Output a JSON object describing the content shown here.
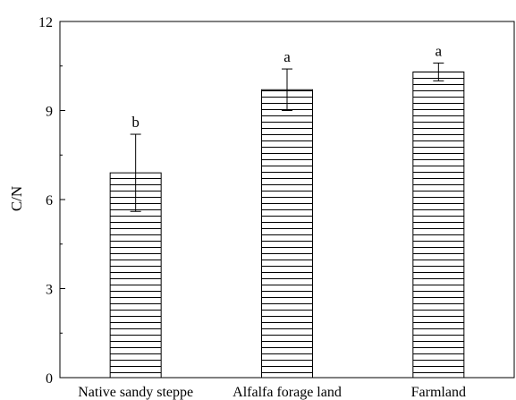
{
  "chart_data": {
    "type": "bar",
    "title": "",
    "xlabel": "",
    "ylabel": "C/N",
    "ylim": [
      0,
      12
    ],
    "yticks": [
      0,
      3,
      6,
      9,
      12
    ],
    "categories": [
      "Native sandy steppe",
      "Alfalfa forage land",
      "Farmland"
    ],
    "values": [
      6.9,
      9.7,
      10.3
    ],
    "error": [
      1.3,
      0.7,
      0.3
    ],
    "significance_labels": [
      "b",
      "a",
      "a"
    ],
    "bar_fill": "horizontal-hatch",
    "colors": {
      "bar_line": "#000000",
      "background": "#ffffff"
    },
    "grid": false,
    "legend": "none"
  }
}
